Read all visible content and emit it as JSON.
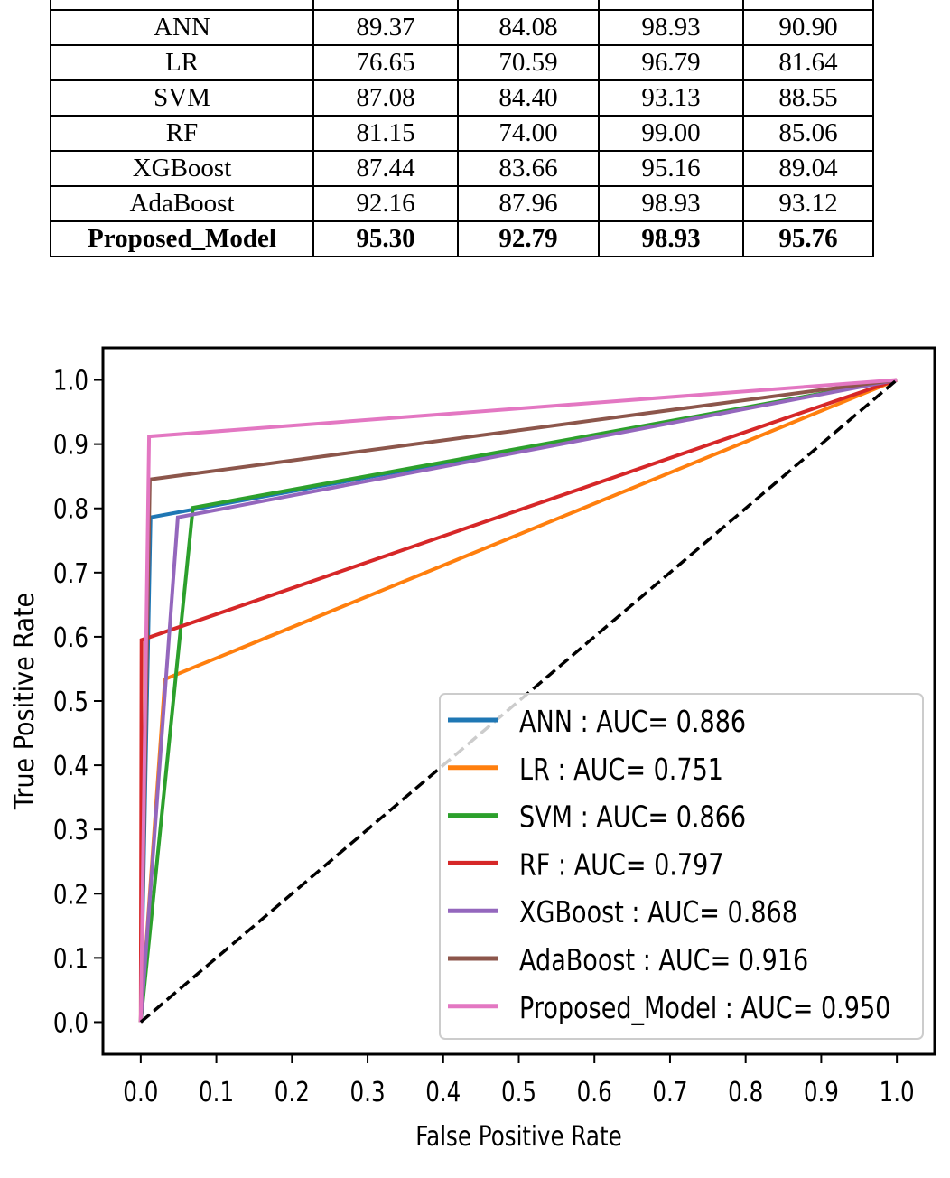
{
  "table": {
    "header": [
      "",
      "",
      "",
      "",
      ""
    ],
    "rows": [
      [
        "ANN",
        "89.37",
        "84.08",
        "98.93",
        "90.90"
      ],
      [
        "LR",
        "76.65",
        "70.59",
        "96.79",
        "81.64"
      ],
      [
        "SVM",
        "87.08",
        "84.40",
        "93.13",
        "88.55"
      ],
      [
        "RF",
        "81.15",
        "74.00",
        "99.00",
        "85.06"
      ],
      [
        "XGBoost",
        "87.44",
        "83.66",
        "95.16",
        "89.04"
      ],
      [
        "AdaBoost",
        "92.16",
        "87.96",
        "98.93",
        "93.12"
      ],
      [
        "Proposed_Model",
        "95.30",
        "92.79",
        "98.93",
        "95.76"
      ]
    ],
    "bold_row": "Proposed_Model"
  },
  "chart_data": {
    "type": "line",
    "title": "",
    "xlabel": "False Positive Rate",
    "ylabel": "True Positive Rate",
    "xlim": [
      -0.05,
      1.05
    ],
    "ylim": [
      -0.05,
      1.05
    ],
    "xticks": [
      "0.0",
      "0.1",
      "0.2",
      "0.3",
      "0.4",
      "0.5",
      "0.6",
      "0.7",
      "0.8",
      "0.9",
      "1.0"
    ],
    "yticks": [
      "0.0",
      "0.1",
      "0.2",
      "0.3",
      "0.4",
      "0.5",
      "0.6",
      "0.7",
      "0.8",
      "0.9",
      "1.0"
    ],
    "grid": false,
    "legend_position": "lower-right",
    "series": [
      {
        "name": "ANN :   AUC= 0.886",
        "color": "#1f77b4",
        "x": [
          0,
          0.013,
          1
        ],
        "y": [
          0,
          0.786,
          1
        ]
      },
      {
        "name": "LR :   AUC= 0.751",
        "color": "#ff7f0e",
        "x": [
          0,
          0.032,
          1
        ],
        "y": [
          0,
          0.534,
          1
        ]
      },
      {
        "name": "SVM :   AUC= 0.866",
        "color": "#2ca02c",
        "x": [
          0,
          0.069,
          1
        ],
        "y": [
          0,
          0.801,
          1
        ]
      },
      {
        "name": "RF :   AUC= 0.797",
        "color": "#d62728",
        "x": [
          0,
          0.001,
          1
        ],
        "y": [
          0,
          0.595,
          1
        ]
      },
      {
        "name": "XGBoost :   AUC= 0.868",
        "color": "#9467bd",
        "x": [
          0,
          0.049,
          1
        ],
        "y": [
          0,
          0.786,
          1
        ]
      },
      {
        "name": "AdaBoost :   AUC= 0.916",
        "color": "#8c564b",
        "x": [
          0,
          0.012,
          1
        ],
        "y": [
          0,
          0.845,
          1
        ]
      },
      {
        "name": "Proposed_Model :   AUC= 0.950",
        "color": "#e377c2",
        "x": [
          0,
          0.011,
          1
        ],
        "y": [
          0,
          0.912,
          1
        ]
      }
    ],
    "reference_line": {
      "x": [
        0,
        1
      ],
      "y": [
        0,
        1
      ],
      "color": "#000000",
      "style": "dashed"
    }
  }
}
